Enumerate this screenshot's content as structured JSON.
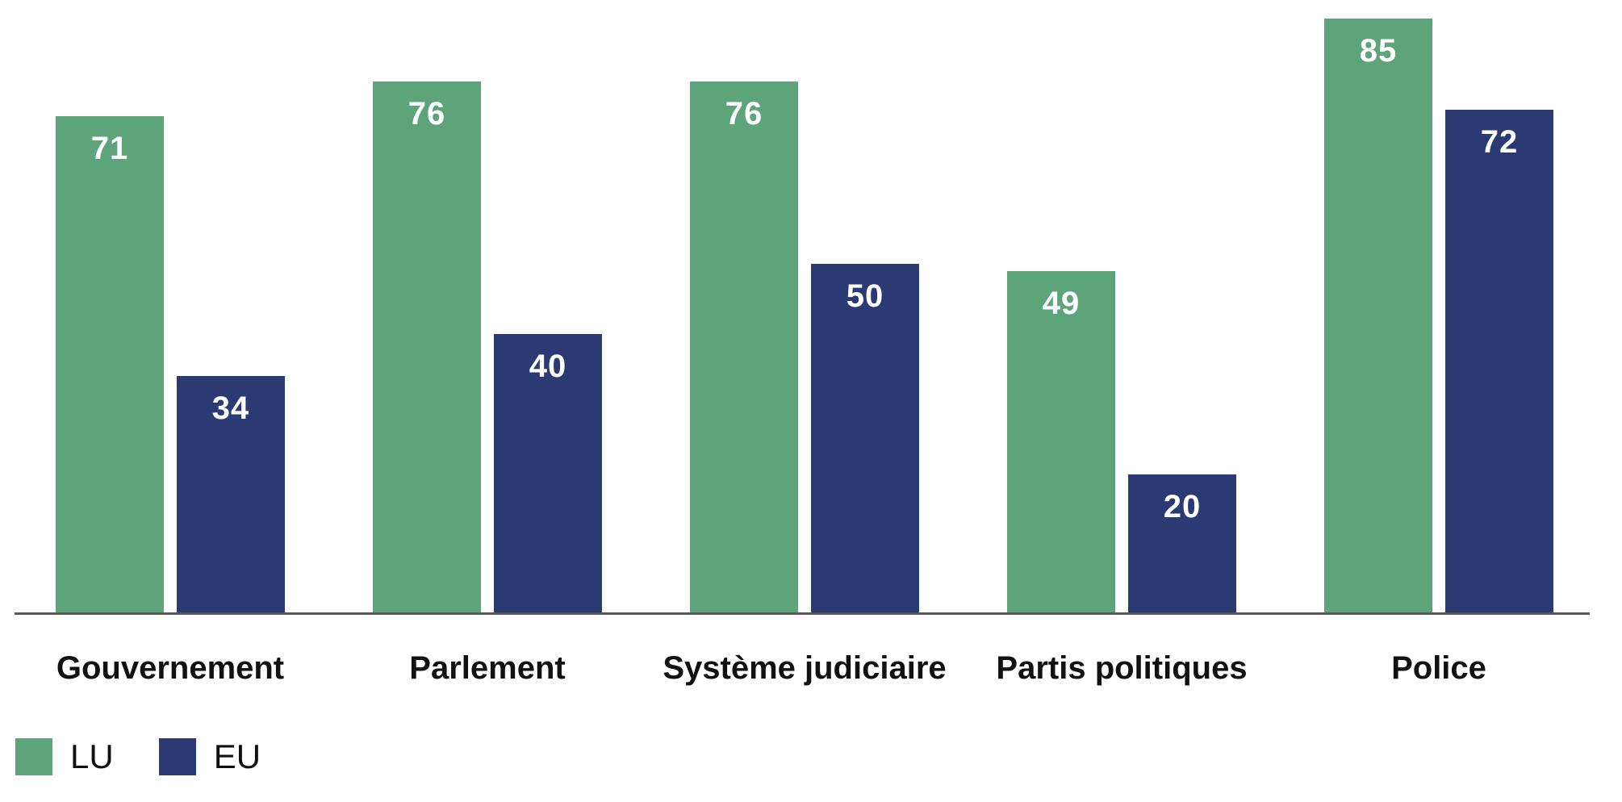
{
  "chart_data": {
    "type": "bar",
    "title": "",
    "xlabel": "",
    "ylabel": "",
    "grid": false,
    "value_labels_visible": true,
    "legend_position": "bottom-left",
    "axis_line_color": "#58585B",
    "value_label_color": "#FFFFFF",
    "category_label_color": "#111111",
    "ylim": [
      0,
      87.5
    ],
    "categories": [
      "Gouvernement",
      "Parlement",
      "Système judiciaire",
      "Partis politiques",
      "Police"
    ],
    "series": [
      {
        "name": "LU",
        "color": "#5EA47B",
        "values": [
          71,
          76,
          76,
          49,
          85
        ]
      },
      {
        "name": "EU",
        "color": "#2C3A74",
        "values": [
          34,
          40,
          50,
          20,
          72
        ]
      }
    ]
  }
}
